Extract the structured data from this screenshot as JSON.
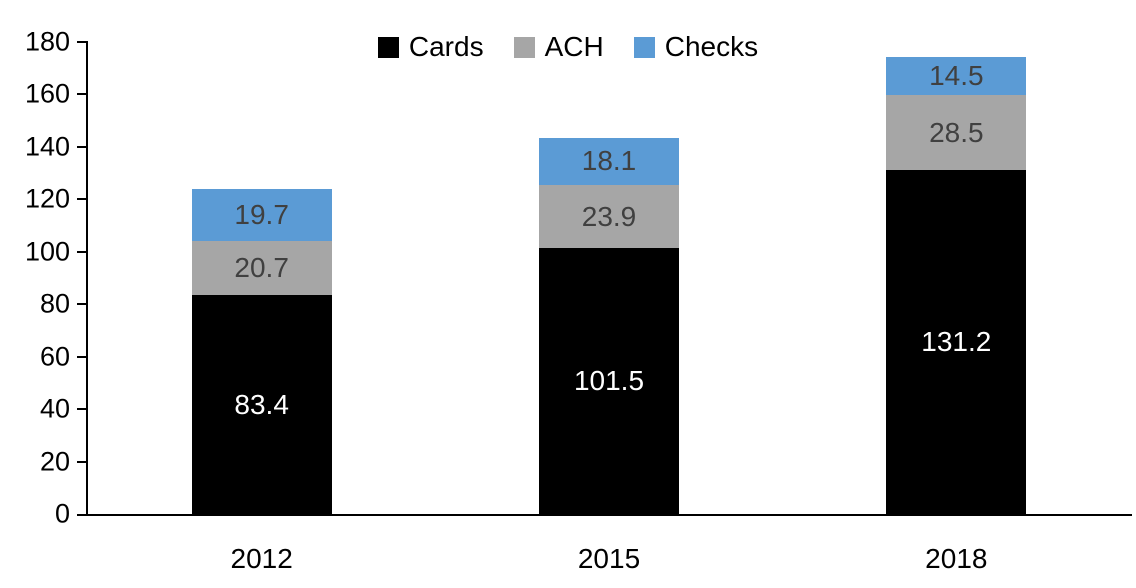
{
  "chart_data": {
    "type": "bar",
    "stacked": true,
    "title": "",
    "xlabel": "",
    "ylabel": "",
    "categories": [
      "2012",
      "2015",
      "2018"
    ],
    "series": [
      {
        "name": "Cards",
        "color": "#000000",
        "label_color": "#ffffff",
        "values": [
          83.4,
          101.5,
          131.2
        ]
      },
      {
        "name": "ACH",
        "color": "#a6a6a6",
        "label_color": "#404040",
        "values": [
          20.7,
          23.9,
          28.5
        ]
      },
      {
        "name": "Checks",
        "color": "#5b9bd5",
        "label_color": "#404040",
        "values": [
          19.7,
          18.1,
          14.5
        ]
      }
    ],
    "ylim": [
      0,
      180
    ],
    "yticks": [
      0,
      20,
      40,
      60,
      80,
      100,
      120,
      140,
      160,
      180
    ],
    "value_labels_shown": true,
    "legend_position": "top-center",
    "grid": false,
    "axis_color": "#000000",
    "background": "#ffffff"
  }
}
